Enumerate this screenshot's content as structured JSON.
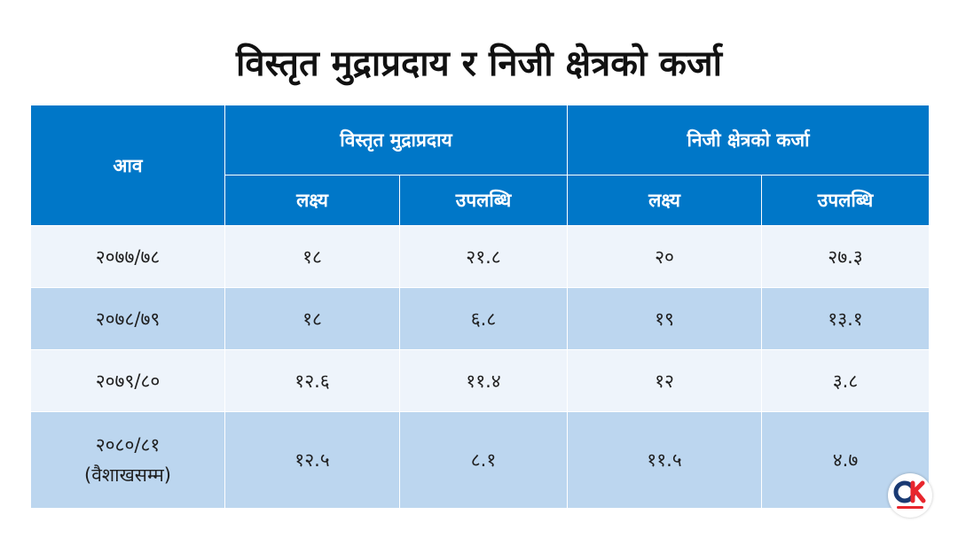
{
  "title": "विस्तृत मुद्राप्रदाय र निजी क्षेत्रको कर्जा",
  "table": {
    "year_header": "आव",
    "group_headers": [
      "विस्तृत मुद्राप्रदाय",
      "निजी क्षेत्रको कर्जा"
    ],
    "sub_headers": [
      "लक्ष्य",
      "उपलब्धि",
      "लक्ष्य",
      "उपलब्धि"
    ],
    "rows": [
      {
        "year": "२०७७/७८",
        "year_note": "",
        "values": [
          "१८",
          "२१.८",
          "२०",
          "२७.३"
        ]
      },
      {
        "year": "२०७८/७९",
        "year_note": "",
        "values": [
          "१८",
          "६.८",
          "१९",
          "१३.१"
        ]
      },
      {
        "year": "२०७९/८०",
        "year_note": "",
        "values": [
          "१२.६",
          "११.४",
          "१२",
          "३.८"
        ]
      },
      {
        "year": "२०८०/८१",
        "year_note": "(वैशाखसम्म)",
        "values": [
          "१२.५",
          "८.१",
          "११.५",
          "४.७"
        ]
      }
    ]
  },
  "logo": {
    "name": "onlinekhabar-logo-icon",
    "brand_color": "#e8262d",
    "dark_color": "#1a3a73"
  }
}
